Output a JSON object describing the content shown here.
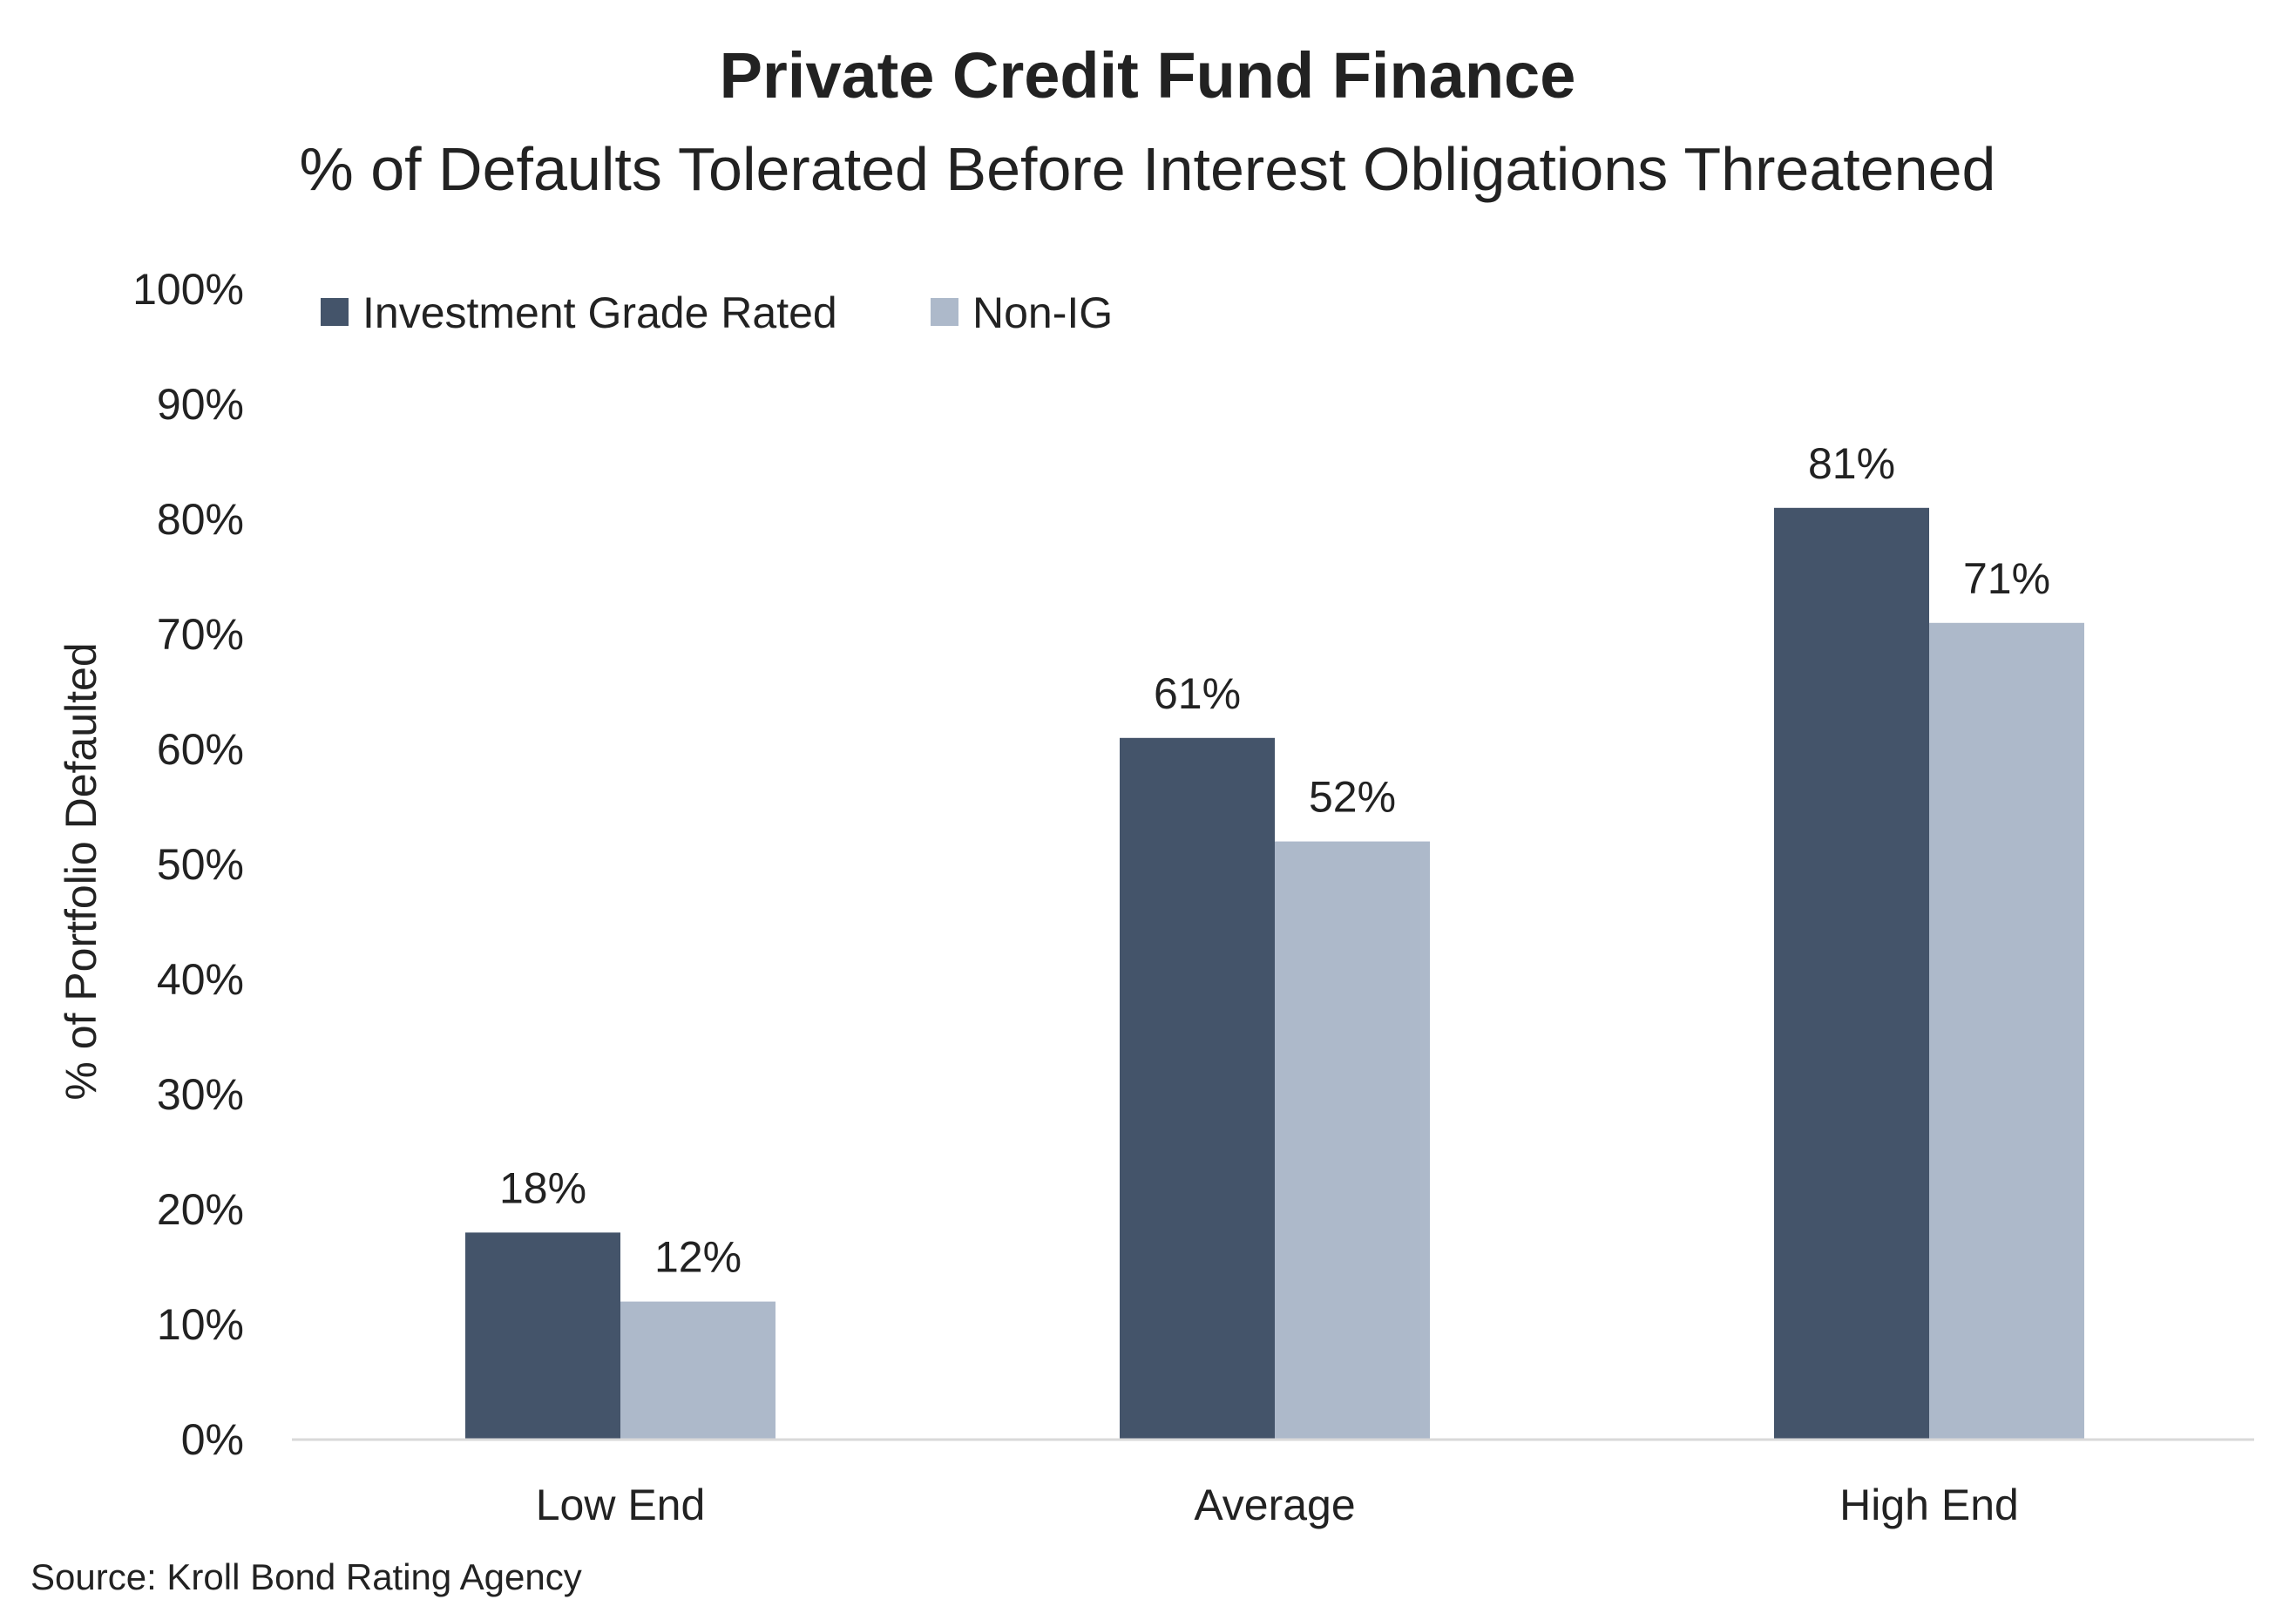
{
  "chart_data": {
    "type": "bar",
    "title": "Private Credit Fund Finance",
    "subtitle": "% of Defaults Tolerated Before Interest Obligations Threatened",
    "xlabel": "",
    "ylabel": "% of Portfolio Defaulted",
    "categories": [
      "Low End",
      "Average",
      "High End"
    ],
    "series": [
      {
        "name": "Investment Grade Rated",
        "values": [
          18,
          61,
          81
        ],
        "labels": [
          "18%",
          "61%",
          "81%"
        ],
        "color": "#44546a"
      },
      {
        "name": "Non-IG",
        "values": [
          12,
          52,
          71
        ],
        "labels": [
          "12%",
          "52%",
          "71%"
        ],
        "color": "#adb9ca"
      }
    ],
    "ylim": [
      0,
      100
    ],
    "yticks": [
      0,
      10,
      20,
      30,
      40,
      50,
      60,
      70,
      80,
      90,
      100
    ],
    "ytick_labels": [
      "0%",
      "10%",
      "20%",
      "30%",
      "40%",
      "50%",
      "60%",
      "70%",
      "80%",
      "90%",
      "100%"
    ],
    "grid": false,
    "legend_position": "top-left",
    "source": "Source: Kroll Bond Rating Agency",
    "axis_color": "#d9d9d9"
  }
}
